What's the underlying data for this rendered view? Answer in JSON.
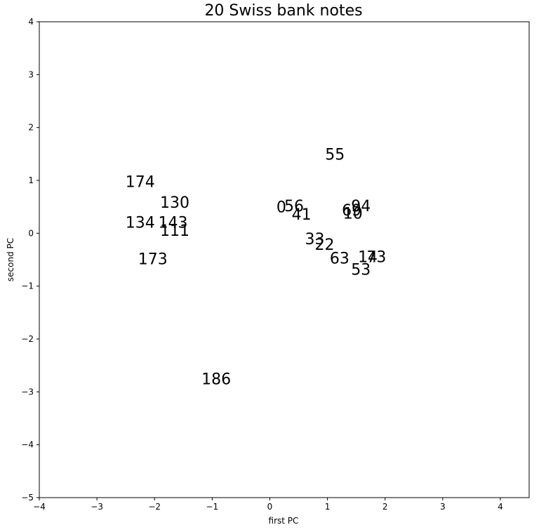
{
  "chart_data": {
    "type": "scatter",
    "title": "20 Swiss bank notes",
    "xlabel": "first PC",
    "ylabel": "second PC",
    "xlim": [
      -4,
      4.5
    ],
    "ylim": [
      -5,
      4
    ],
    "xticks": [
      -4,
      -3,
      -2,
      -1,
      0,
      1,
      2,
      3,
      4
    ],
    "yticks": [
      -5,
      -4,
      -3,
      -2,
      -1,
      0,
      1,
      2,
      3,
      4
    ],
    "grid": false,
    "marker": "text-label",
    "points": [
      {
        "label": "174",
        "x": -2.25,
        "y": 0.98
      },
      {
        "label": "130",
        "x": -1.65,
        "y": 0.59
      },
      {
        "label": "134",
        "x": -2.25,
        "y": 0.21
      },
      {
        "label": "143",
        "x": -1.68,
        "y": 0.21
      },
      {
        "label": "111",
        "x": -1.65,
        "y": 0.06
      },
      {
        "label": "173",
        "x": -2.03,
        "y": -0.48
      },
      {
        "label": "186",
        "x": -0.93,
        "y": -2.75
      },
      {
        "label": "55",
        "x": 1.13,
        "y": 1.5
      },
      {
        "label": "0",
        "x": 0.2,
        "y": 0.5
      },
      {
        "label": "56",
        "x": 0.42,
        "y": 0.52
      },
      {
        "label": "41",
        "x": 0.55,
        "y": 0.36
      },
      {
        "label": "69",
        "x": 1.42,
        "y": 0.44
      },
      {
        "label": "10",
        "x": 1.44,
        "y": 0.38
      },
      {
        "label": "94",
        "x": 1.58,
        "y": 0.52
      },
      {
        "label": "33",
        "x": 0.78,
        "y": -0.1
      },
      {
        "label": "22",
        "x": 0.95,
        "y": -0.21
      },
      {
        "label": "63",
        "x": 1.21,
        "y": -0.47
      },
      {
        "label": "14",
        "x": 1.7,
        "y": -0.44
      },
      {
        "label": "73",
        "x": 1.85,
        "y": -0.44
      },
      {
        "label": "53",
        "x": 1.58,
        "y": -0.68
      }
    ]
  }
}
